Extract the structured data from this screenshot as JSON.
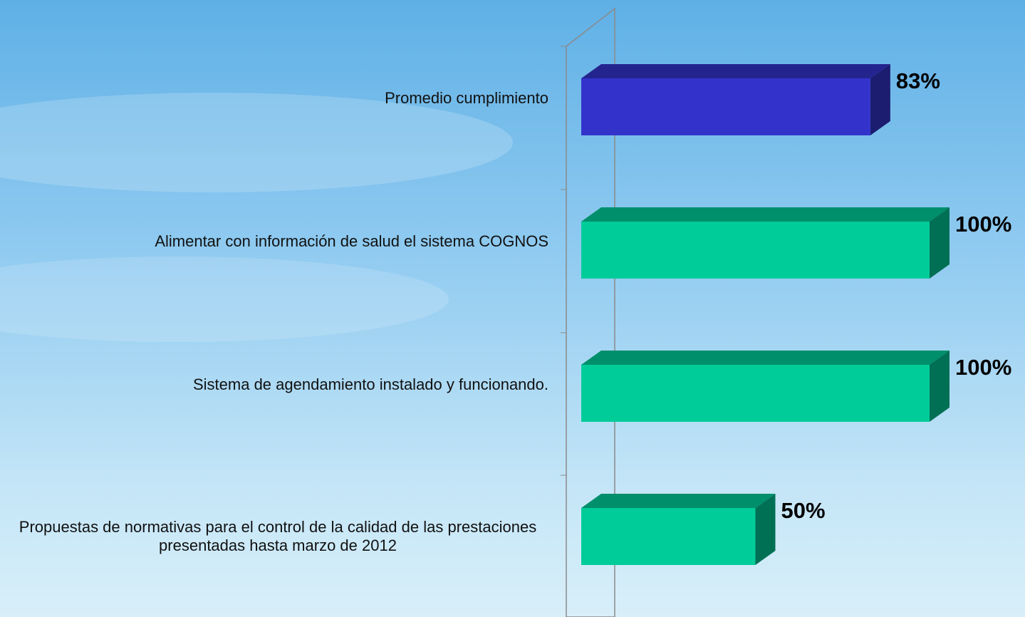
{
  "chart_data": {
    "type": "bar3d-horizontal",
    "categories": [
      "Promedio cumplimiento",
      "Alimentar con información de salud el sistema COGNOS",
      "Sistema de agendamiento instalado y funcionando.",
      "Propuestas de normativas para el control de la calidad de las prestaciones presentadas hasta marzo de 2012"
    ],
    "values": [
      83,
      100,
      100,
      50
    ],
    "value_labels": [
      "83%",
      "100%",
      "100%",
      "50%"
    ],
    "colors": [
      "#3333cc",
      "#00cc99",
      "#00cc99",
      "#00cc99"
    ],
    "xlim": [
      0,
      100
    ]
  }
}
